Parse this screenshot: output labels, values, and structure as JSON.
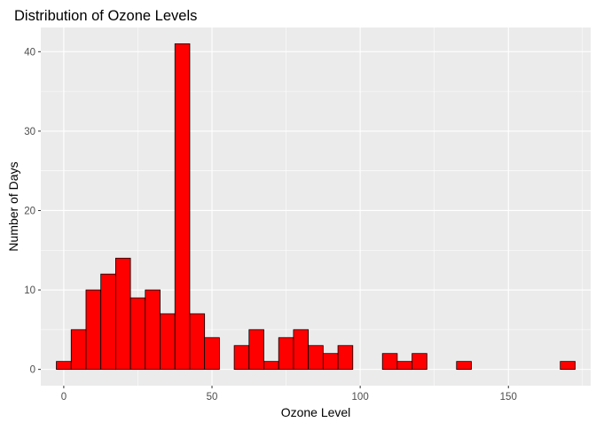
{
  "chart_data": {
    "type": "bar",
    "title": "Distribution of Ozone Levels",
    "xlabel": "Ozone Level",
    "ylabel": "Number of Days",
    "bin_width": 5,
    "bins": [
      {
        "start": -2.5,
        "end": 2.5,
        "count": 1
      },
      {
        "start": 2.5,
        "end": 7.5,
        "count": 5
      },
      {
        "start": 7.5,
        "end": 12.5,
        "count": 10
      },
      {
        "start": 12.5,
        "end": 17.5,
        "count": 12
      },
      {
        "start": 17.5,
        "end": 22.5,
        "count": 14
      },
      {
        "start": 22.5,
        "end": 27.5,
        "count": 9
      },
      {
        "start": 27.5,
        "end": 32.5,
        "count": 10
      },
      {
        "start": 32.5,
        "end": 37.5,
        "count": 7
      },
      {
        "start": 37.5,
        "end": 42.5,
        "count": 41
      },
      {
        "start": 42.5,
        "end": 47.5,
        "count": 7
      },
      {
        "start": 47.5,
        "end": 52.5,
        "count": 4
      },
      {
        "start": 52.5,
        "end": 57.5,
        "count": 0
      },
      {
        "start": 57.5,
        "end": 62.5,
        "count": 3
      },
      {
        "start": 62.5,
        "end": 67.5,
        "count": 5
      },
      {
        "start": 67.5,
        "end": 72.5,
        "count": 1
      },
      {
        "start": 72.5,
        "end": 77.5,
        "count": 4
      },
      {
        "start": 77.5,
        "end": 82.5,
        "count": 5
      },
      {
        "start": 82.5,
        "end": 87.5,
        "count": 3
      },
      {
        "start": 87.5,
        "end": 92.5,
        "count": 2
      },
      {
        "start": 92.5,
        "end": 97.5,
        "count": 3
      },
      {
        "start": 97.5,
        "end": 102.5,
        "count": 0
      },
      {
        "start": 102.5,
        "end": 107.5,
        "count": 0
      },
      {
        "start": 107.5,
        "end": 112.5,
        "count": 2
      },
      {
        "start": 112.5,
        "end": 117.5,
        "count": 1
      },
      {
        "start": 117.5,
        "end": 122.5,
        "count": 2
      },
      {
        "start": 122.5,
        "end": 127.5,
        "count": 0
      },
      {
        "start": 127.5,
        "end": 132.5,
        "count": 0
      },
      {
        "start": 132.5,
        "end": 137.5,
        "count": 1
      },
      {
        "start": 137.5,
        "end": 142.5,
        "count": 0
      },
      {
        "start": 142.5,
        "end": 147.5,
        "count": 0
      },
      {
        "start": 147.5,
        "end": 152.5,
        "count": 0
      },
      {
        "start": 152.5,
        "end": 157.5,
        "count": 0
      },
      {
        "start": 157.5,
        "end": 162.5,
        "count": 0
      },
      {
        "start": 162.5,
        "end": 167.5,
        "count": 0
      },
      {
        "start": 167.5,
        "end": 172.5,
        "count": 1
      }
    ],
    "xlim": [
      -7.75,
      177.75
    ],
    "ylim": [
      -2.05,
      43.05
    ],
    "x_ticks": [
      0,
      50,
      100,
      150
    ],
    "x_tick_labels": [
      "0",
      "50",
      "100",
      "150"
    ],
    "y_ticks": [
      0,
      10,
      20,
      30,
      40
    ],
    "y_tick_labels": [
      "0",
      "10",
      "20",
      "30",
      "40"
    ],
    "grid": true,
    "colors": {
      "fill": "#ff0000",
      "outline": "#000000",
      "panel_background": "#ebebeb",
      "grid_line": "#ffffff",
      "tick_label": "#4d4d4d",
      "tick_mark": "#333333",
      "axis_title": "#000000"
    }
  }
}
